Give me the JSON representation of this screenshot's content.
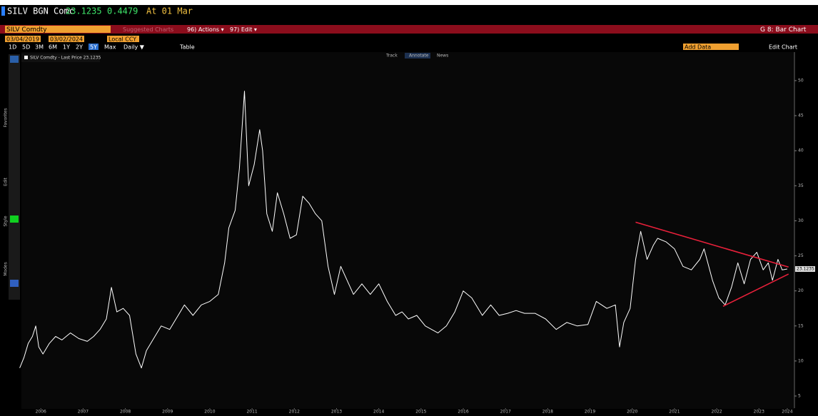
{
  "header": {
    "ticker": "SILV BGN Comc",
    "price": "23.1235",
    "change": "0.4479",
    "time": "At 01 Mar"
  },
  "menu": {
    "security": "SILV Comdty",
    "suggested": "Suggested Charts",
    "actions": "96) Actions ▾",
    "edit": "97) Edit ▾",
    "page": "G 8: Bar Chart"
  },
  "controls": {
    "start": "03/04/2019",
    "end": "03/02/2024",
    "currency": "Local CCY",
    "periods": [
      "1D",
      "5D",
      "3M",
      "6M",
      "1Y",
      "2Y",
      "5Y",
      "Max"
    ],
    "frequency": "Daily ▼",
    "table": "Table",
    "add_data": "Add Data",
    "edit_chart": "Edit Chart",
    "track": "Track",
    "annotate": "Annotate",
    "news": "News"
  },
  "sidebar": [
    "Favorites",
    "Edit",
    "Style",
    "Modes"
  ],
  "chart_data": {
    "type": "line",
    "x": [
      2006.0,
      2006.1,
      2006.2,
      2006.3,
      2006.38,
      2006.45,
      2006.55,
      2006.7,
      2006.85,
      2007.0,
      2007.2,
      2007.4,
      2007.6,
      2007.75,
      2007.9,
      2008.05,
      2008.17,
      2008.3,
      2008.45,
      2008.6,
      2008.75,
      2008.88,
      2009.0,
      2009.15,
      2009.35,
      2009.55,
      2009.75,
      2009.9,
      2010.1,
      2010.3,
      2010.5,
      2010.7,
      2010.85,
      2010.95,
      2011.1,
      2011.2,
      2011.32,
      2011.42,
      2011.55,
      2011.68,
      2011.75,
      2011.85,
      2011.98,
      2012.1,
      2012.25,
      2012.4,
      2012.55,
      2012.7,
      2012.85,
      2013.0,
      2013.15,
      2013.3,
      2013.45,
      2013.6,
      2013.75,
      2013.9,
      2014.1,
      2014.3,
      2014.5,
      2014.7,
      2014.9,
      2015.05,
      2015.2,
      2015.4,
      2015.6,
      2015.9,
      2016.1,
      2016.3,
      2016.5,
      2016.7,
      2016.95,
      2017.15,
      2017.35,
      2017.55,
      2017.75,
      2017.95,
      2018.2,
      2018.45,
      2018.7,
      2018.95,
      2019.2,
      2019.45,
      2019.65,
      2019.9,
      2020.1,
      2020.2,
      2020.3,
      2020.45,
      2020.58,
      2020.7,
      2020.85,
      2021.0,
      2021.1,
      2021.3,
      2021.5,
      2021.7,
      2021.9,
      2022.1,
      2022.2,
      2022.4,
      2022.55,
      2022.7,
      2022.85,
      2023.0,
      2023.15,
      2023.3,
      2023.45,
      2023.6,
      2023.72,
      2023.82,
      2023.95,
      2024.05,
      2024.17
    ],
    "series": [
      {
        "name": "SILV Comdty - Last Price 23.1235",
        "color": "#ffffff",
        "values": [
          9.0,
          10.5,
          12.5,
          13.5,
          15.0,
          12.0,
          11.0,
          12.5,
          13.5,
          13.0,
          14.0,
          13.2,
          12.8,
          13.5,
          14.5,
          16.0,
          20.5,
          17.0,
          17.5,
          16.5,
          11.0,
          9.0,
          11.5,
          13.0,
          15.0,
          14.5,
          16.5,
          18.0,
          16.5,
          18.0,
          18.5,
          19.5,
          24.0,
          29.0,
          31.5,
          37.5,
          48.5,
          35.0,
          38.0,
          43.0,
          40.0,
          31.0,
          28.5,
          34.0,
          31.0,
          27.5,
          28.0,
          33.5,
          32.5,
          31.0,
          30.0,
          23.5,
          19.5,
          23.5,
          21.5,
          19.5,
          21.0,
          19.5,
          21.0,
          18.5,
          16.5,
          17.0,
          16.0,
          16.5,
          15.0,
          14.0,
          15.0,
          17.0,
          20.0,
          19.0,
          16.5,
          18.0,
          16.5,
          16.8,
          17.2,
          16.8,
          16.8,
          16.0,
          14.5,
          15.5,
          15.0,
          15.2,
          18.5,
          17.5,
          18.0,
          12.0,
          15.5,
          17.5,
          24.5,
          28.5,
          24.5,
          26.5,
          27.5,
          27.0,
          26.0,
          23.5,
          23.0,
          24.5,
          26.0,
          21.5,
          19.0,
          18.0,
          20.5,
          24.0,
          21.0,
          24.5,
          25.5,
          23.0,
          24.0,
          21.5,
          24.5,
          23.0,
          23.1235
        ]
      }
    ],
    "trendlines": [
      {
        "color": "#e8203a",
        "x": [
          2020.58,
          2024.2
        ],
        "values": [
          29.8,
          23.4
        ]
      },
      {
        "color": "#e8203a",
        "x": [
          2022.65,
          2024.2
        ],
        "values": [
          17.8,
          22.4
        ]
      }
    ],
    "last_value_label": "23.1235",
    "xlim": [
      2006.04,
      2024.34
    ],
    "ylim": [
      3.27,
      53.56
    ],
    "xticks": [
      {
        "value": 2006.5,
        "label": "2006"
      },
      {
        "value": 2007.5,
        "label": "2007"
      },
      {
        "value": 2008.5,
        "label": "2008"
      },
      {
        "value": 2009.5,
        "label": "2009"
      },
      {
        "value": 2010.5,
        "label": "2010"
      },
      {
        "value": 2011.5,
        "label": "2011"
      },
      {
        "value": 2012.5,
        "label": "2012"
      },
      {
        "value": 2013.5,
        "label": "2013"
      },
      {
        "value": 2014.5,
        "label": "2014"
      },
      {
        "value": 2015.5,
        "label": "2015"
      },
      {
        "value": 2016.5,
        "label": "2016"
      },
      {
        "value": 2017.5,
        "label": "2017"
      },
      {
        "value": 2018.5,
        "label": "2018"
      },
      {
        "value": 2019.5,
        "label": "2019"
      },
      {
        "value": 2020.5,
        "label": "2020"
      },
      {
        "value": 2021.5,
        "label": "2021"
      },
      {
        "value": 2022.5,
        "label": "2022"
      },
      {
        "value": 2023.5,
        "label": "2023"
      },
      {
        "value": 2024.17,
        "label": "2024"
      }
    ],
    "yticks": [
      5,
      10,
      15,
      20,
      25,
      30,
      35,
      40,
      45,
      50
    ],
    "grid": false
  }
}
